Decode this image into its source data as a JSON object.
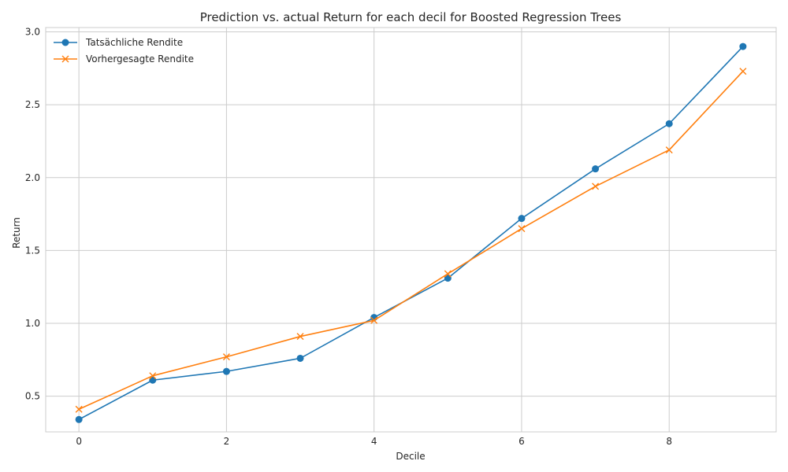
{
  "chart_data": {
    "type": "line",
    "title": "Prediction vs. actual Return for each decil for Boosted Regression Trees",
    "xlabel": "Decile",
    "ylabel": "Return",
    "x": [
      0,
      1,
      2,
      3,
      4,
      5,
      6,
      7,
      8,
      9
    ],
    "xlim": [
      -0.45,
      9.45
    ],
    "ylim": [
      0.255,
      3.03
    ],
    "xticks": [
      0,
      2,
      4,
      6,
      8
    ],
    "xtick_labels": [
      "0",
      "2",
      "4",
      "6",
      "8"
    ],
    "yticks": [
      0.5,
      1.0,
      1.5,
      2.0,
      2.5,
      3.0
    ],
    "ytick_labels": [
      "0.5",
      "1.0",
      "1.5",
      "2.0",
      "2.5",
      "3.0"
    ],
    "grid": true,
    "legend_position": "top-left",
    "series": [
      {
        "name": "Tatsächliche Rendite",
        "marker": "circle",
        "color": "#1f77b4",
        "values": [
          0.34,
          0.61,
          0.67,
          0.76,
          1.04,
          1.31,
          1.72,
          2.06,
          2.37,
          2.9
        ]
      },
      {
        "name": "Vorhergesagte Rendite",
        "marker": "x",
        "color": "#ff7f0e",
        "values": [
          0.41,
          0.64,
          0.77,
          0.91,
          1.02,
          1.34,
          1.65,
          1.94,
          2.19,
          2.73
        ]
      }
    ]
  },
  "colors": {
    "grid": "#cccccc",
    "axes_edge": "#cccccc",
    "text": "#262626",
    "legend_border": "#cccccc"
  }
}
